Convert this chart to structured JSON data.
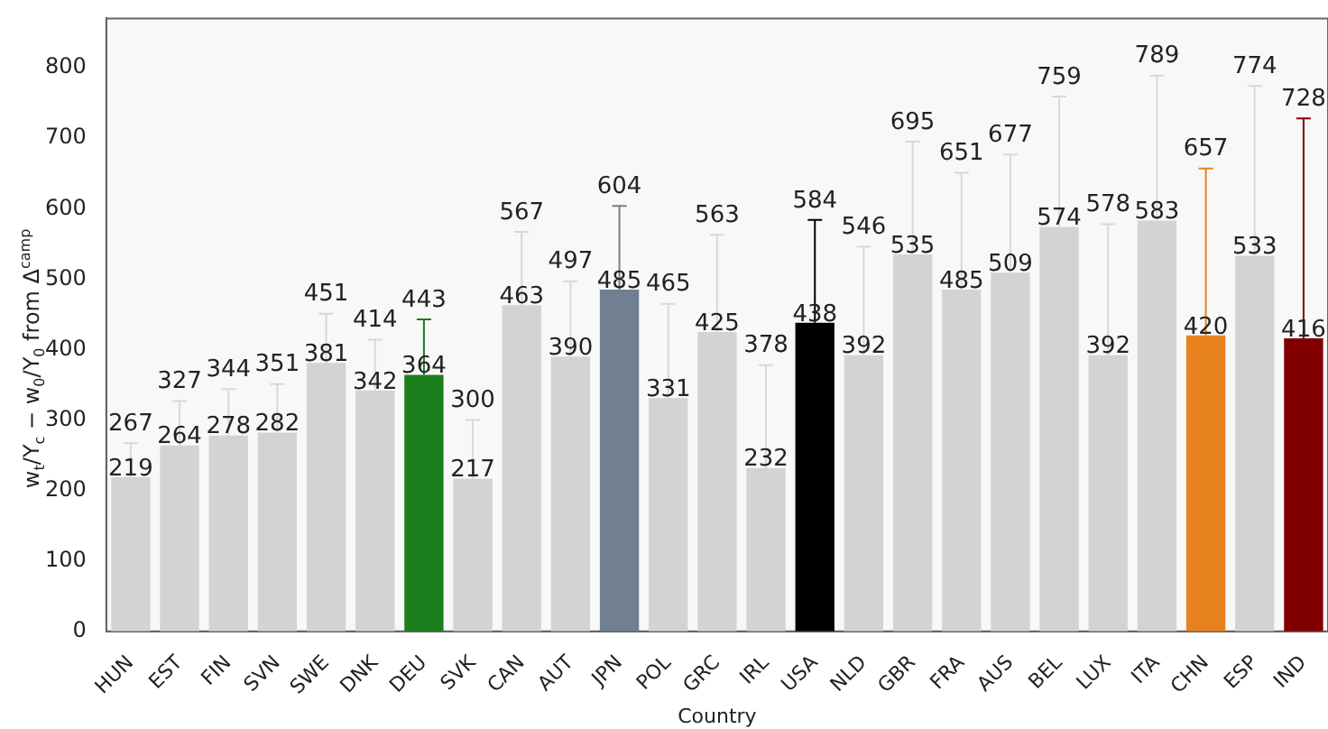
{
  "chart_data": {
    "type": "bar",
    "xlabel": "Country",
    "ylabel": "w$_{t}$/Y$_{c}$ − w$_{0}$/Y$_{0}$ from Δ$^{camp}$",
    "categories": [
      "HUN",
      "EST",
      "FIN",
      "SVN",
      "SWE",
      "DNK",
      "DEU",
      "SVK",
      "CAN",
      "AUT",
      "JPN",
      "POL",
      "GRC",
      "IRL",
      "USA",
      "NLD",
      "GBR",
      "FRA",
      "AUS",
      "BEL",
      "LUX",
      "ITA",
      "CHN",
      "ESP",
      "IND"
    ],
    "values": [
      219,
      264,
      278,
      282,
      381,
      342,
      364,
      217,
      463,
      390,
      485,
      331,
      425,
      232,
      438,
      392,
      535,
      485,
      509,
      574,
      392,
      583,
      420,
      533,
      416
    ],
    "colors": [
      "#d3d3d3",
      "#d3d3d3",
      "#d3d3d3",
      "#d3d3d3",
      "#d3d3d3",
      "#d3d3d3",
      "#1c7d1c",
      "#d3d3d3",
      "#d3d3d3",
      "#d3d3d3",
      "#708090",
      "#d3d3d3",
      "#d3d3d3",
      "#d3d3d3",
      "#000000",
      "#d3d3d3",
      "#d3d3d3",
      "#d3d3d3",
      "#d3d3d3",
      "#d3d3d3",
      "#d3d3d3",
      "#d3d3d3",
      "#e8821e",
      "#d3d3d3",
      "#800000"
    ],
    "errors": [
      [
        219,
        267
      ],
      [
        264,
        327
      ],
      [
        278,
        344
      ],
      [
        282,
        351
      ],
      [
        381,
        451
      ],
      [
        342,
        414
      ],
      [
        364,
        443
      ],
      [
        217,
        300
      ],
      [
        463,
        567
      ],
      [
        390,
        497
      ],
      [
        485,
        604
      ],
      [
        331,
        465
      ],
      [
        425,
        563
      ],
      [
        232,
        378
      ],
      [
        438,
        584
      ],
      [
        392,
        546
      ],
      [
        535,
        695
      ],
      [
        485,
        651
      ],
      [
        509,
        677
      ],
      [
        574,
        759
      ],
      [
        392,
        578
      ],
      [
        583,
        789
      ],
      [
        420,
        657
      ],
      [
        533,
        774
      ],
      [
        416,
        728
      ]
    ],
    "annotations": [
      {
        "text": "267",
        "x": "HUN",
        "y": 267
      },
      {
        "text": "327",
        "x": "EST",
        "y": 327
      },
      {
        "text": "344",
        "x": "FIN",
        "y": 344
      },
      {
        "text": "351",
        "x": "SVN",
        "y": 351
      },
      {
        "text": "451",
        "x": "SWE",
        "y": 451
      },
      {
        "text": "414",
        "x": "DNK",
        "y": 414
      },
      {
        "text": "443",
        "x": "DEU",
        "y": 443
      },
      {
        "text": "300",
        "x": "SVK",
        "y": 300
      },
      {
        "text": "567",
        "x": "CAN",
        "y": 567
      },
      {
        "text": "497",
        "x": "AUT",
        "y": 497
      },
      {
        "text": "604",
        "x": "JPN",
        "y": 604
      },
      {
        "text": "465",
        "x": "POL",
        "y": 465
      },
      {
        "text": "563",
        "x": "GRC",
        "y": 563
      },
      {
        "text": "378",
        "x": "IRL",
        "y": 378
      },
      {
        "text": "584",
        "x": "USA",
        "y": 584
      },
      {
        "text": "546",
        "x": "NLD",
        "y": 546
      },
      {
        "text": "695",
        "x": "GBR",
        "y": 695
      },
      {
        "text": "651",
        "x": "FRA",
        "y": 651
      },
      {
        "text": "677",
        "x": "AUS",
        "y": 677
      },
      {
        "text": "759",
        "x": "BEL",
        "y": 759
      },
      {
        "text": "578",
        "x": "LUX",
        "y": 578
      },
      {
        "text": "789",
        "x": "ITA",
        "y": 789
      },
      {
        "text": "657",
        "x": "CHN",
        "y": 657
      },
      {
        "text": "774",
        "x": "ESP",
        "y": 774
      },
      {
        "text": "728",
        "x": "IND",
        "y": 728
      }
    ],
    "data_labels": true,
    "ylim": [
      0,
      870
    ],
    "yticks": [
      0,
      100,
      200,
      300,
      400,
      500,
      600,
      700,
      800
    ],
    "grid": false,
    "legend": false
  }
}
